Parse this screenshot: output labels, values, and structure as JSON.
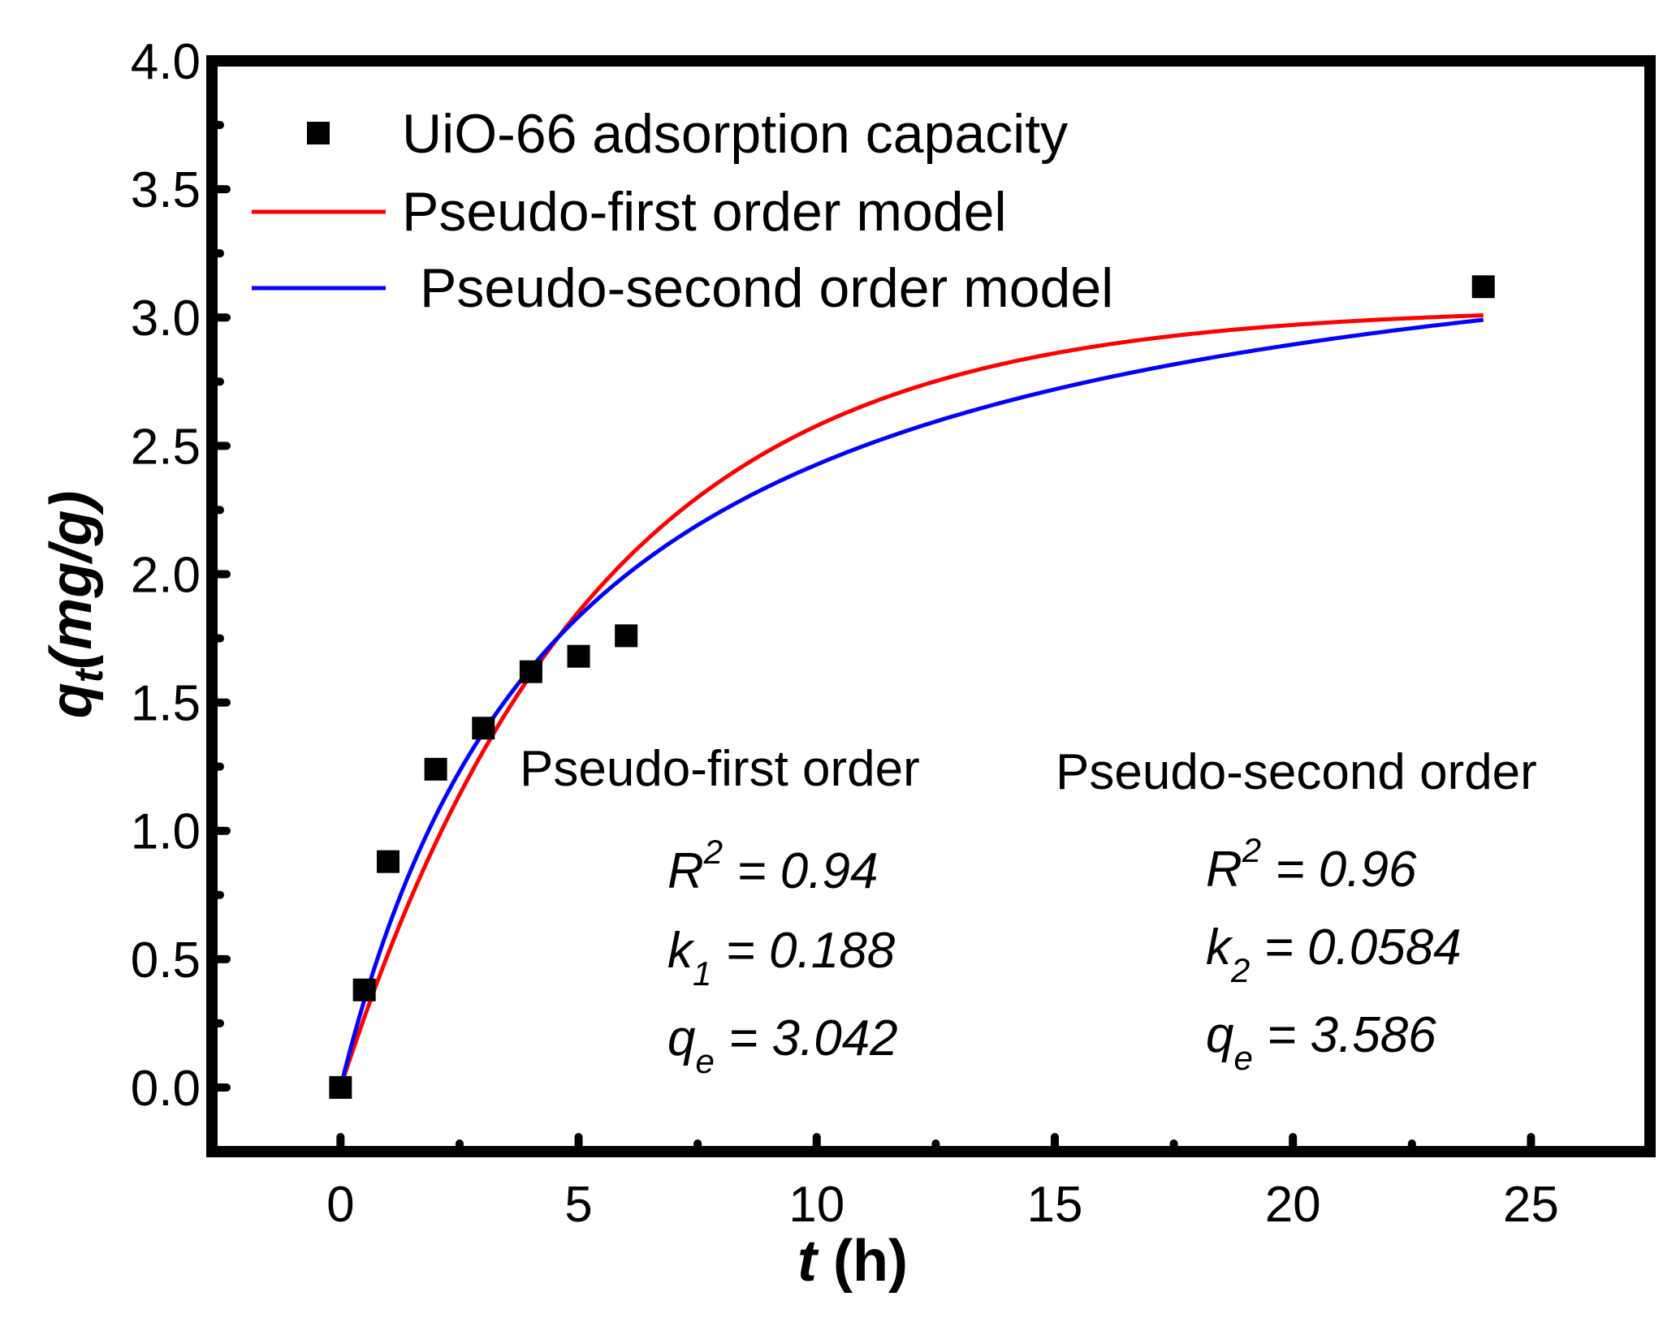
{
  "chart_data": {
    "type": "scatter",
    "title": "",
    "xlabel": {
      "var": "t",
      "unit": " (h)"
    },
    "ylabel": {
      "var": "q",
      "sub": "t",
      "unit": "(mg/g)"
    },
    "xlim": [
      -2.7,
      27.5
    ],
    "ylim": [
      -0.25,
      4.0
    ],
    "xticks": [
      0,
      5,
      10,
      15,
      20,
      25
    ],
    "xtick_labels": [
      "0",
      "5",
      "10",
      "15",
      "20",
      "25"
    ],
    "yticks": [
      0.0,
      0.5,
      1.0,
      1.5,
      2.0,
      2.5,
      3.0,
      3.5,
      4.0
    ],
    "ytick_labels": [
      "0.0",
      "0.5",
      "1.0",
      "1.5",
      "2.0",
      "2.5",
      "3.0",
      "3.5",
      "4.0"
    ],
    "legend_position": "top-left",
    "series": [
      {
        "name": "UiO-66 adsorption capacity",
        "kind": "scatter",
        "marker": "square",
        "color": "#000000",
        "x": [
          0,
          0.5,
          1,
          2,
          3,
          4,
          5,
          6,
          24
        ],
        "y": [
          0.0,
          0.38,
          0.88,
          1.24,
          1.4,
          1.62,
          1.68,
          1.76,
          3.12
        ]
      },
      {
        "name": "Pseudo-first order model",
        "kind": "line",
        "color": "#ff0000",
        "model": "pseudo-first",
        "params": {
          "qe": 3.042,
          "k1": 0.188
        },
        "x_range": [
          0,
          24
        ]
      },
      {
        "name": "Pseudo-second order model",
        "kind": "line",
        "color": "#0000ff",
        "model": "pseudo-second",
        "params": {
          "qe": 3.586,
          "k2": 0.0584
        },
        "x_range": [
          0,
          24
        ]
      }
    ],
    "annotations": [
      {
        "id": "pfo",
        "title": "Pseudo-first order",
        "r2": {
          "label": "R",
          "sup": "2",
          "value": " = 0.94"
        },
        "k": {
          "label": "k",
          "sub": "1",
          "value": " = 0.188"
        },
        "qe": {
          "label": "q",
          "sub": "e",
          "value": " = 3.042"
        }
      },
      {
        "id": "pso",
        "title": "Pseudo-second order",
        "r2": {
          "label": "R",
          "sup": "2",
          "value": " = 0.96"
        },
        "k": {
          "label": "k",
          "sub": "2",
          "value": " = 0.0584"
        },
        "qe": {
          "label": "q",
          "sub": "e",
          "value": " = 3.586"
        }
      }
    ]
  }
}
